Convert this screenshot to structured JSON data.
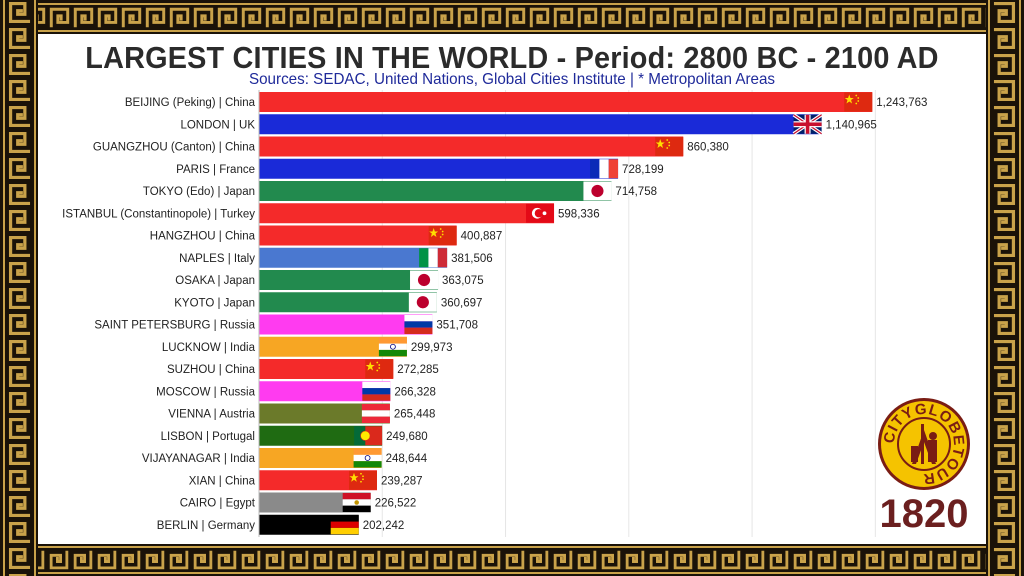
{
  "title": "LARGEST CITIES IN THE WORLD - Period: 2800 BC - 2100 AD",
  "subtitle": "Sources: SEDAC, United Nations, Global Cities Institute | * Metropolitan Areas",
  "year": "1820",
  "logo": {
    "text": "CITYGLOBETOUR",
    "icon": "city-globe-tour-logo"
  },
  "colors": {
    "border": "#c9a24a",
    "background": "#ffffff",
    "title": "#2b2b2b",
    "subtitle": "#1f2a9a",
    "year": "#6b1f1f"
  },
  "chart_data": {
    "type": "bar",
    "orientation": "horizontal",
    "xlim": [
      0,
      1300000
    ],
    "grid": "vertical",
    "categories": [
      "BEIJING (Peking) | China",
      "LONDON | UK",
      "GUANGZHOU (Canton) | China",
      "PARIS | France",
      "TOKYO (Edo) | Japan",
      "ISTANBUL (Constantinopole) | Turkey",
      "HANGZHOU | China",
      "NAPLES | Italy",
      "OSAKA | Japan",
      "KYOTO | Japan",
      "SAINT PETERSBURG | Russia",
      "LUCKNOW | India",
      "SUZHOU | China",
      "MOSCOW | Russia",
      "VIENNA | Austria",
      "LISBON | Portugal",
      "VIJAYANAGAR | India",
      "XIAN | China",
      "CAIRO | Egypt",
      "BERLIN | Germany"
    ],
    "values": [
      1243763,
      1140965,
      860380,
      728199,
      714758,
      598336,
      400887,
      381506,
      363075,
      360697,
      351708,
      299973,
      272285,
      266328,
      265448,
      249680,
      248644,
      239287,
      226522,
      202242
    ],
    "value_labels": [
      "1,243,763",
      "1,140,965",
      "860,380",
      "728,199",
      "714,758",
      "598,336",
      "400,887",
      "381,506",
      "363,075",
      "360,697",
      "351,708",
      "299,973",
      "272,285",
      "266,328",
      "265,448",
      "249,680",
      "248,644",
      "239,287",
      "226,522",
      "202,242"
    ],
    "bar_colors": [
      "#f42a2a",
      "#1a2ad8",
      "#f42a2a",
      "#1a2ad8",
      "#228a4e",
      "#f42a2a",
      "#f42a2a",
      "#4a78d0",
      "#228a4e",
      "#228a4e",
      "#ff3bf0",
      "#f7a623",
      "#f42a2a",
      "#ff3bf0",
      "#6b7a2a",
      "#1f6b12",
      "#f7a623",
      "#f42a2a",
      "#8a8a8a",
      "#000000"
    ],
    "flags": [
      "china",
      "uk",
      "china",
      "france",
      "japan",
      "turkey",
      "china",
      "italy",
      "japan",
      "japan",
      "russia",
      "india",
      "china",
      "russia",
      "austria",
      "portugal",
      "india",
      "china",
      "egypt",
      "germany"
    ]
  }
}
